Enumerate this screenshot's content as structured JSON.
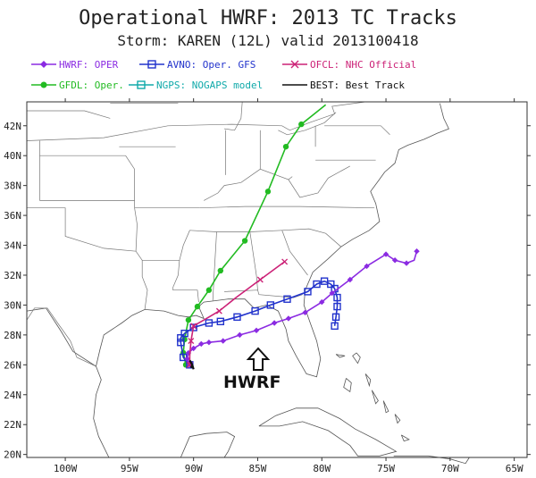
{
  "title": "Operational HWRF: 2013 TC Tracks",
  "subtitle": "Storm: KAREN (12L) valid 2013100418",
  "legend": [
    {
      "key": "hwrf",
      "label": "HWRF: OPER",
      "color": "#8b2be2",
      "marker": "diamond"
    },
    {
      "key": "avno",
      "label": "AVNO: Oper. GFS",
      "color": "#2233cc",
      "marker": "square"
    },
    {
      "key": "ofcl",
      "label": "OFCL: NHC Official",
      "color": "#cc2277",
      "marker": "x"
    },
    {
      "key": "gfdl",
      "label": "GFDL: Oper.",
      "color": "#22bb22",
      "marker": "circle"
    },
    {
      "key": "ngps",
      "label": "NGPS: NOGAPS model",
      "color": "#11aaaa",
      "marker": "square"
    },
    {
      "key": "best",
      "label": "BEST: Best Track",
      "color": "#111111",
      "marker": "none"
    }
  ],
  "annotation": {
    "text": "HWRF",
    "arrow": "up-arrow-icon"
  },
  "chart_data": {
    "type": "map-tracks",
    "xlim": [
      -103,
      -64
    ],
    "ylim": [
      19.8,
      43.6
    ],
    "x_ticks": [
      {
        "value": -100,
        "label": "100W"
      },
      {
        "value": -95,
        "label": "95W"
      },
      {
        "value": -90,
        "label": "90W"
      },
      {
        "value": -85,
        "label": "85W"
      },
      {
        "value": -80,
        "label": "80W"
      },
      {
        "value": -75,
        "label": "75W"
      },
      {
        "value": -70,
        "label": "70W"
      },
      {
        "value": -65,
        "label": "65W"
      }
    ],
    "y_ticks": [
      {
        "value": 20,
        "label": "20N"
      },
      {
        "value": 22,
        "label": "22N"
      },
      {
        "value": 24,
        "label": "24N"
      },
      {
        "value": 26,
        "label": "26N"
      },
      {
        "value": 28,
        "label": "28N"
      },
      {
        "value": 30,
        "label": "30N"
      },
      {
        "value": 32,
        "label": "32N"
      },
      {
        "value": 34,
        "label": "34N"
      },
      {
        "value": 36,
        "label": "36N"
      },
      {
        "value": 38,
        "label": "38N"
      },
      {
        "value": 40,
        "label": "40N"
      },
      {
        "value": 42,
        "label": "42N"
      }
    ],
    "series": [
      {
        "key": "gfdl",
        "points": [
          [
            -90.6,
            26.0
          ],
          [
            -90.8,
            26.8
          ],
          [
            -90.7,
            27.7
          ],
          [
            -90.4,
            29.0
          ],
          [
            -89.7,
            29.9
          ],
          [
            -88.8,
            31.0
          ],
          [
            -87.9,
            32.3
          ],
          [
            -86.0,
            34.3
          ],
          [
            -84.2,
            37.6
          ],
          [
            -82.8,
            40.6
          ],
          [
            -81.6,
            42.1
          ],
          [
            -79.7,
            43.4
          ]
        ],
        "markers": [
          [
            -90.6,
            26.0
          ],
          [
            -90.8,
            26.8
          ],
          [
            -90.7,
            27.7
          ],
          [
            -90.4,
            29.0
          ],
          [
            -89.7,
            29.9
          ],
          [
            -88.8,
            31.0
          ],
          [
            -87.9,
            32.3
          ],
          [
            -86.0,
            34.3
          ],
          [
            -84.2,
            37.6
          ],
          [
            -82.8,
            40.6
          ],
          [
            -81.6,
            42.1
          ]
        ]
      },
      {
        "key": "avno",
        "points": [
          [
            -90.3,
            26.0
          ],
          [
            -90.8,
            26.5
          ],
          [
            -91.0,
            27.5
          ],
          [
            -91.0,
            27.8
          ],
          [
            -90.7,
            28.1
          ],
          [
            -90.0,
            28.5
          ],
          [
            -88.8,
            28.8
          ],
          [
            -87.9,
            28.9
          ],
          [
            -86.6,
            29.2
          ],
          [
            -85.2,
            29.6
          ],
          [
            -84.0,
            30.0
          ],
          [
            -82.7,
            30.4
          ],
          [
            -81.1,
            30.9
          ],
          [
            -80.4,
            31.4
          ],
          [
            -79.8,
            31.6
          ],
          [
            -79.3,
            31.4
          ],
          [
            -79.0,
            31.1
          ],
          [
            -78.8,
            30.5
          ],
          [
            -78.8,
            29.9
          ],
          [
            -78.9,
            29.2
          ],
          [
            -79.0,
            28.6
          ]
        ],
        "markers": [
          [
            -90.3,
            26.0
          ],
          [
            -90.8,
            26.5
          ],
          [
            -91.0,
            27.5
          ],
          [
            -91.0,
            27.8
          ],
          [
            -90.7,
            28.1
          ],
          [
            -90.0,
            28.5
          ],
          [
            -88.8,
            28.8
          ],
          [
            -87.9,
            28.9
          ],
          [
            -86.6,
            29.2
          ],
          [
            -85.2,
            29.6
          ],
          [
            -84.0,
            30.0
          ],
          [
            -82.7,
            30.4
          ],
          [
            -81.1,
            30.9
          ],
          [
            -80.4,
            31.4
          ],
          [
            -79.8,
            31.6
          ],
          [
            -79.3,
            31.4
          ],
          [
            -79.0,
            31.1
          ],
          [
            -78.8,
            30.5
          ],
          [
            -78.8,
            29.9
          ],
          [
            -78.9,
            29.2
          ],
          [
            -79.0,
            28.6
          ]
        ]
      },
      {
        "key": "hwrf",
        "points": [
          [
            -90.3,
            26.0
          ],
          [
            -90.5,
            26.4
          ],
          [
            -90.4,
            26.8
          ],
          [
            -90.0,
            27.1
          ],
          [
            -89.4,
            27.4
          ],
          [
            -88.8,
            27.5
          ],
          [
            -87.7,
            27.6
          ],
          [
            -86.4,
            28.0
          ],
          [
            -85.1,
            28.3
          ],
          [
            -83.7,
            28.8
          ],
          [
            -82.6,
            29.1
          ],
          [
            -81.3,
            29.5
          ],
          [
            -80.0,
            30.2
          ],
          [
            -79.2,
            30.8
          ],
          [
            -77.8,
            31.7
          ],
          [
            -76.5,
            32.6
          ],
          [
            -75.0,
            33.4
          ],
          [
            -74.3,
            33.0
          ],
          [
            -73.4,
            32.8
          ],
          [
            -72.8,
            33.0
          ],
          [
            -72.6,
            33.6
          ]
        ],
        "markers": [
          [
            -90.3,
            26.0
          ],
          [
            -90.5,
            26.4
          ],
          [
            -90.4,
            26.8
          ],
          [
            -90.0,
            27.1
          ],
          [
            -89.4,
            27.4
          ],
          [
            -88.8,
            27.5
          ],
          [
            -87.7,
            27.6
          ],
          [
            -86.4,
            28.0
          ],
          [
            -85.1,
            28.3
          ],
          [
            -83.7,
            28.8
          ],
          [
            -82.6,
            29.1
          ],
          [
            -81.3,
            29.5
          ],
          [
            -80.0,
            30.2
          ],
          [
            -79.2,
            30.8
          ],
          [
            -77.8,
            31.7
          ],
          [
            -76.5,
            32.6
          ],
          [
            -75.0,
            33.4
          ],
          [
            -74.3,
            33.0
          ],
          [
            -73.4,
            32.8
          ],
          [
            -72.6,
            33.6
          ]
        ]
      },
      {
        "key": "ofcl",
        "points": [
          [
            -90.3,
            26.0
          ],
          [
            -90.3,
            26.6
          ],
          [
            -90.2,
            27.6
          ],
          [
            -90.0,
            28.6
          ],
          [
            -89.2,
            29.0
          ],
          [
            -88.0,
            29.6
          ],
          [
            -86.7,
            30.5
          ],
          [
            -84.8,
            31.7
          ],
          [
            -82.9,
            32.9
          ]
        ],
        "markers": [
          [
            -90.3,
            26.0
          ],
          [
            -90.2,
            27.6
          ],
          [
            -90.0,
            28.6
          ],
          [
            -88.0,
            29.6
          ],
          [
            -84.8,
            31.7
          ],
          [
            -82.9,
            32.9
          ]
        ]
      },
      {
        "key": "best",
        "points": [
          [
            -90.0,
            25.7
          ],
          [
            -90.1,
            26.0
          ],
          [
            -90.3,
            26.3
          ],
          [
            -90.1,
            26.0
          ],
          [
            -90.2,
            25.8
          ]
        ],
        "markers": []
      }
    ]
  }
}
